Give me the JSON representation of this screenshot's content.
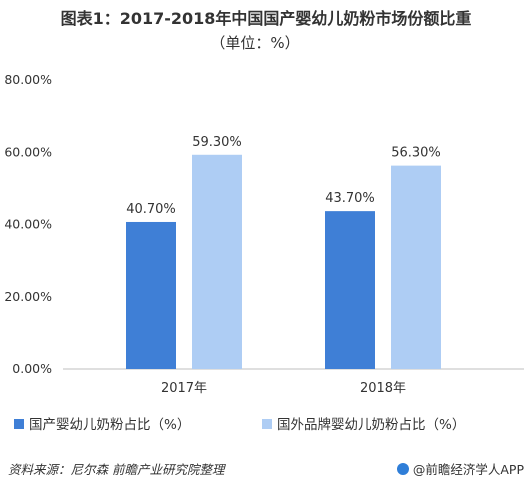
{
  "chart_data": {
    "type": "bar",
    "title": "图表1：2017-2018年中国国产婴幼儿奶粉市场份额比重",
    "subtitle": "（单位：%）",
    "categories": [
      "2017年",
      "2018年"
    ],
    "series": [
      {
        "name": "国产婴幼儿奶粉占比（%）",
        "values": [
          40.7,
          43.7
        ],
        "labels": [
          "40.70%",
          "43.70%"
        ],
        "color": "#3f7fd6"
      },
      {
        "name": "国外品牌婴幼儿奶粉占比（%）",
        "values": [
          59.3,
          56.3
        ],
        "labels": [
          "59.30%",
          "56.30%"
        ],
        "color": "#aecdf4"
      }
    ],
    "yticks": [
      "0.00%",
      "20.00%",
      "40.00%",
      "60.00%",
      "80.00%"
    ],
    "ylim": [
      0,
      80
    ],
    "xlabel": "",
    "ylabel": "",
    "grid": false,
    "legend": "bottom"
  },
  "footer": {
    "source": "资料来源：尼尔森  前瞻产业研究院整理",
    "brand": "@前瞻经济学人APP"
  }
}
